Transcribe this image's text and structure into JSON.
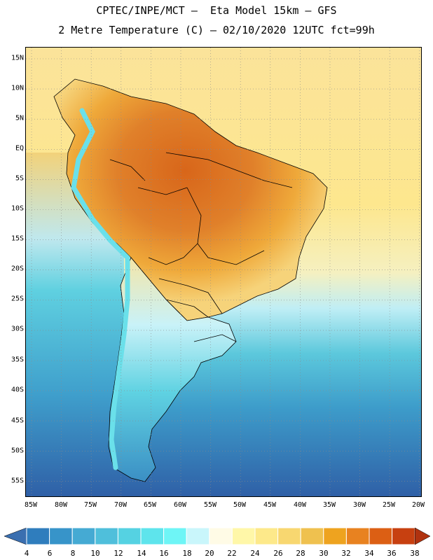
{
  "title": {
    "line1": "CPTEC/INPE/MCT –  Eta Model 15km – GFS",
    "line2": "2 Metre Temperature (C) – 02/10/2020 12UTC fct=99h"
  },
  "axes": {
    "lat_labels": [
      "15N",
      "10N",
      "5N",
      "EQ",
      "5S",
      "10S",
      "15S",
      "20S",
      "25S",
      "30S",
      "35S",
      "40S",
      "45S",
      "50S",
      "55S"
    ],
    "lon_labels": [
      "85W",
      "80W",
      "75W",
      "70W",
      "65W",
      "60W",
      "55W",
      "50W",
      "45W",
      "40W",
      "35W",
      "30W",
      "25W",
      "20W"
    ]
  },
  "colorbar": {
    "labels": [
      "4",
      "6",
      "8",
      "10",
      "12",
      "14",
      "16",
      "18",
      "20",
      "22",
      "24",
      "26",
      "28",
      "30",
      "32",
      "34",
      "36",
      "38"
    ],
    "colors": [
      "#3a6fb0",
      "#2f7dbd",
      "#3794c9",
      "#45aad3",
      "#4fbfdb",
      "#55d2e2",
      "#5ee4ec",
      "#6ef5f6",
      "#c9f6fb",
      "#fffbe6",
      "#fff7a8",
      "#fde98a",
      "#f8d770",
      "#efc14f",
      "#eea31f",
      "#e88220",
      "#dc5f14",
      "#c74010",
      "#b02f0c"
    ],
    "low_arrow_color": "#3a6fb0",
    "high_arrow_color": "#b0320f"
  },
  "map": {
    "ocean_color_north": "#fbe39a",
    "ocean_color_south": "#2f5fa6",
    "land_hot_color": "#d8661a",
    "land_mid_color": "#efa93a",
    "andes_color": "#6ae0ea",
    "border_color": "#000000",
    "grid_color": "#8a8a8a"
  }
}
